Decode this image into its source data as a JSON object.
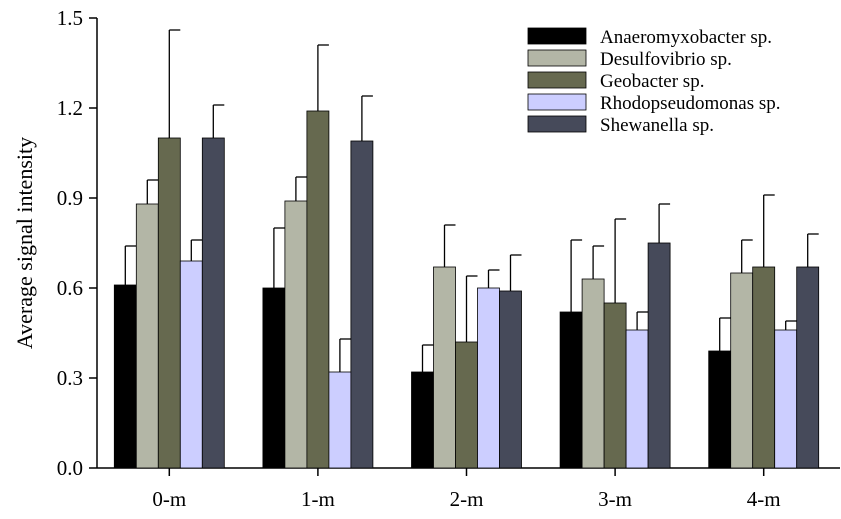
{
  "chart_data": {
    "type": "bar",
    "title": "",
    "xlabel": "",
    "ylabel": "Average signal intensity",
    "ylim": [
      0,
      1.5
    ],
    "yticks": [
      "0.0",
      "0.3",
      "0.6",
      "0.9",
      "1.2",
      "1.5"
    ],
    "categories": [
      "0-m",
      "1-m",
      "2-m",
      "3-m",
      "4-m"
    ],
    "grid": false,
    "legend_position": "top-right",
    "series": [
      {
        "name": "Anaeromyxobacter sp.",
        "color": "#000000",
        "values": [
          0.61,
          0.6,
          0.32,
          0.52,
          0.39
        ],
        "errors": [
          0.13,
          0.2,
          0.09,
          0.24,
          0.11
        ]
      },
      {
        "name": "Desulfovibrio sp.",
        "color": "#b3b6a6",
        "values": [
          0.88,
          0.89,
          0.67,
          0.63,
          0.65
        ],
        "errors": [
          0.08,
          0.08,
          0.14,
          0.11,
          0.11
        ]
      },
      {
        "name": "Geobacter sp.",
        "color": "#66694f",
        "values": [
          1.1,
          1.19,
          0.42,
          0.55,
          0.67
        ],
        "errors": [
          0.36,
          0.22,
          0.22,
          0.28,
          0.24
        ]
      },
      {
        "name": "Rhodopseudomonas sp.",
        "color": "#ccceff",
        "values": [
          0.69,
          0.32,
          0.6,
          0.46,
          0.46
        ],
        "errors": [
          0.07,
          0.11,
          0.06,
          0.06,
          0.03
        ]
      },
      {
        "name": "Shewanella sp.",
        "color": "#464a5a",
        "values": [
          1.1,
          1.09,
          0.59,
          0.75,
          0.67
        ],
        "errors": [
          0.11,
          0.15,
          0.12,
          0.13,
          0.11
        ]
      }
    ]
  }
}
